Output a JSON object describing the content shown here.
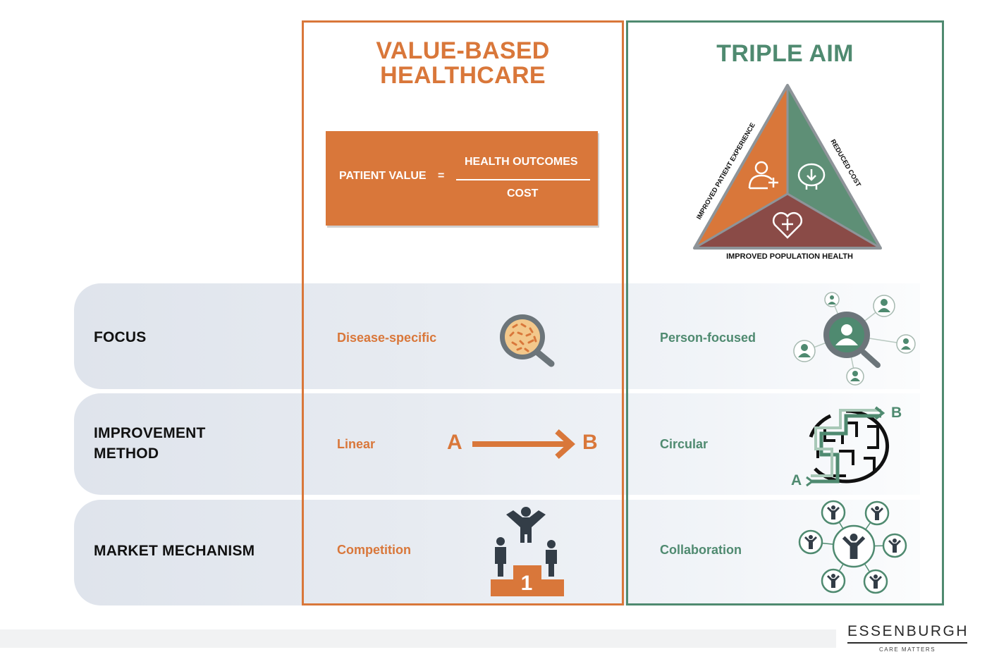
{
  "columns": {
    "vbhc": {
      "title_line1": "VALUE-BASED",
      "title_line2": "HEALTHCARE",
      "color": "#d9773a"
    },
    "triple": {
      "title": "TRIPLE AIM",
      "color": "#4f8a70"
    }
  },
  "formula": {
    "left": "PATIENT VALUE",
    "equals": "=",
    "numerator": "HEALTH OUTCOMES",
    "denominator": "COST"
  },
  "triangle": {
    "left_label": "IMPROVED PATIENT EXPERIENCE",
    "right_label": "REDUCED COST",
    "bottom_label": "IMPROVED POPULATION HEALTH",
    "colors": {
      "left": "#d9773a",
      "right": "#5e8f76",
      "bottom": "#8a4b47"
    }
  },
  "rows": [
    {
      "label": "FOCUS",
      "vbhc": "Disease-specific",
      "triple": "Person-focused"
    },
    {
      "label": "IMPROVEMENT\nMETHOD",
      "vbhc": "Linear",
      "triple": "Circular"
    },
    {
      "label": "MARKET  MECHANISM",
      "vbhc": "Competition",
      "triple": "Collaboration"
    }
  ],
  "linear": {
    "a": "A",
    "b": "B"
  },
  "maze": {
    "a": "A",
    "b": "B"
  },
  "podium": {
    "rank": "1"
  },
  "brand": {
    "name": "ESSENBURGH",
    "tagline": "CARE MATTERS"
  }
}
